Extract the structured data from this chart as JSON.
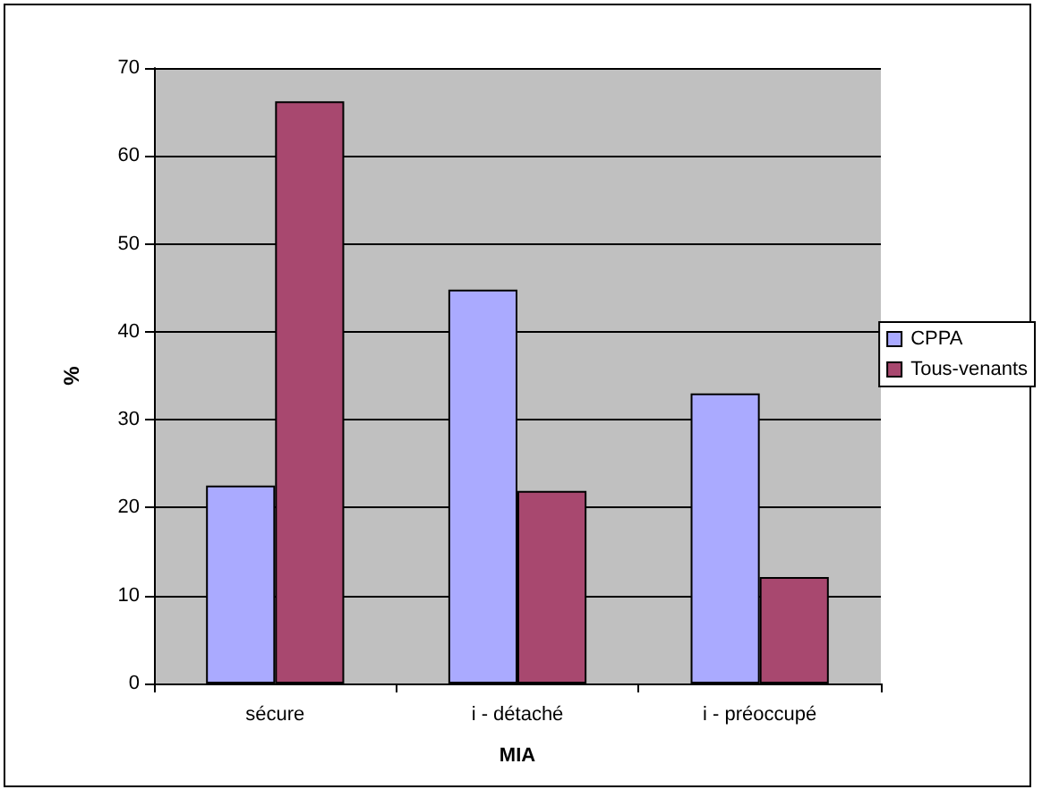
{
  "chart_data": {
    "type": "bar",
    "xlabel": "MIA",
    "ylabel": "%",
    "categories": [
      "sécure",
      "i - détaché",
      "i - préoccupé"
    ],
    "series": [
      {
        "name": "CPPA",
        "color": "#aaaaff",
        "values": [
          22.5,
          44.8,
          33.0
        ]
      },
      {
        "name": "Tous-venants",
        "color": "#a8486f",
        "values": [
          66.2,
          21.9,
          12.1
        ]
      }
    ],
    "ylim": [
      0,
      70
    ],
    "yticks": [
      0,
      10,
      20,
      30,
      40,
      50,
      60,
      70
    ],
    "grid": "y",
    "legend": "right"
  }
}
